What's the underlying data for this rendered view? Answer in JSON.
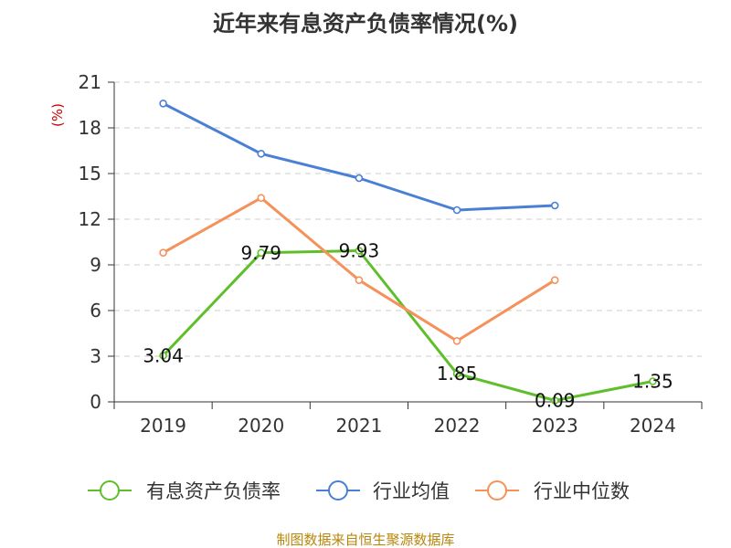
{
  "chart_data": {
    "type": "line",
    "title": "近年来有息资产负债率情况(%)",
    "ylabel": "(%)",
    "categories": [
      "2019",
      "2020",
      "2021",
      "2022",
      "2023",
      "2024"
    ],
    "yticks": [
      0,
      3,
      6,
      9,
      12,
      15,
      18,
      21
    ],
    "ylim": [
      0,
      21
    ],
    "grid": "horizontal dashed",
    "legend_position": "bottom",
    "series": [
      {
        "key": "debt",
        "name": "有息资产负债率",
        "color": "#5fbf2a",
        "values": [
          3.04,
          9.79,
          9.93,
          1.85,
          0.09,
          1.35
        ],
        "labels": [
          "3.04",
          "9.79",
          "9.93",
          "1.85",
          "0.09",
          "1.35"
        ]
      },
      {
        "key": "avg",
        "name": "行业均值",
        "color": "#4a7fd6",
        "values": [
          19.6,
          16.3,
          14.7,
          12.6,
          12.9,
          null
        ]
      },
      {
        "key": "median",
        "name": "行业中位数",
        "color": "#f5915a",
        "values": [
          9.8,
          13.4,
          8.0,
          4.0,
          8.0,
          null
        ]
      }
    ]
  },
  "source": "制图数据来自恒生聚源数据库"
}
